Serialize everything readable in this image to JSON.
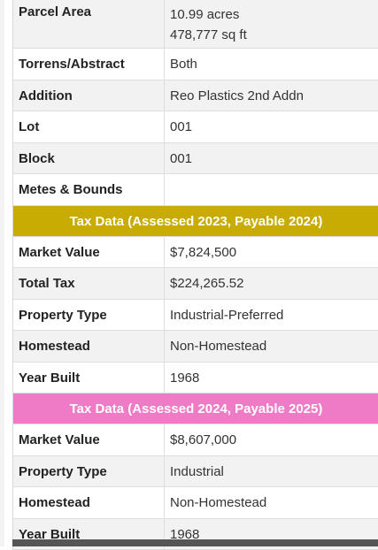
{
  "parcel": {
    "rows": [
      {
        "label": "Parcel Area",
        "value_line1": "10.99 acres",
        "value_line2": "478,777 sq ft"
      },
      {
        "label": "Torrens/Abstract",
        "value": "Both"
      },
      {
        "label": "Addition",
        "value": "Reo Plastics 2nd Addn"
      },
      {
        "label": "Lot",
        "value": "001"
      },
      {
        "label": "Block",
        "value": "001"
      },
      {
        "label": "Metes & Bounds",
        "value": ""
      }
    ]
  },
  "tax_2023": {
    "header": "Tax Data (Assessed 2023, Payable 2024)",
    "header_color": "#c8ab03",
    "rows": [
      {
        "label": "Market Value",
        "value": "$7,824,500"
      },
      {
        "label": "Total Tax",
        "value": "$224,265.52"
      },
      {
        "label": "Property Type",
        "value": "Industrial-Preferred"
      },
      {
        "label": "Homestead",
        "value": "Non-Homestead"
      },
      {
        "label": "Year Built",
        "value": "1968"
      }
    ]
  },
  "tax_2024": {
    "header": "Tax Data (Assessed 2024, Payable 2025)",
    "header_color": "#ef7ac6",
    "rows": [
      {
        "label": "Market Value",
        "value": "$8,607,000"
      },
      {
        "label": "Property Type",
        "value": "Industrial"
      },
      {
        "label": "Homestead",
        "value": "Non-Homestead"
      },
      {
        "label": "Year Built",
        "value": "1968"
      }
    ]
  }
}
